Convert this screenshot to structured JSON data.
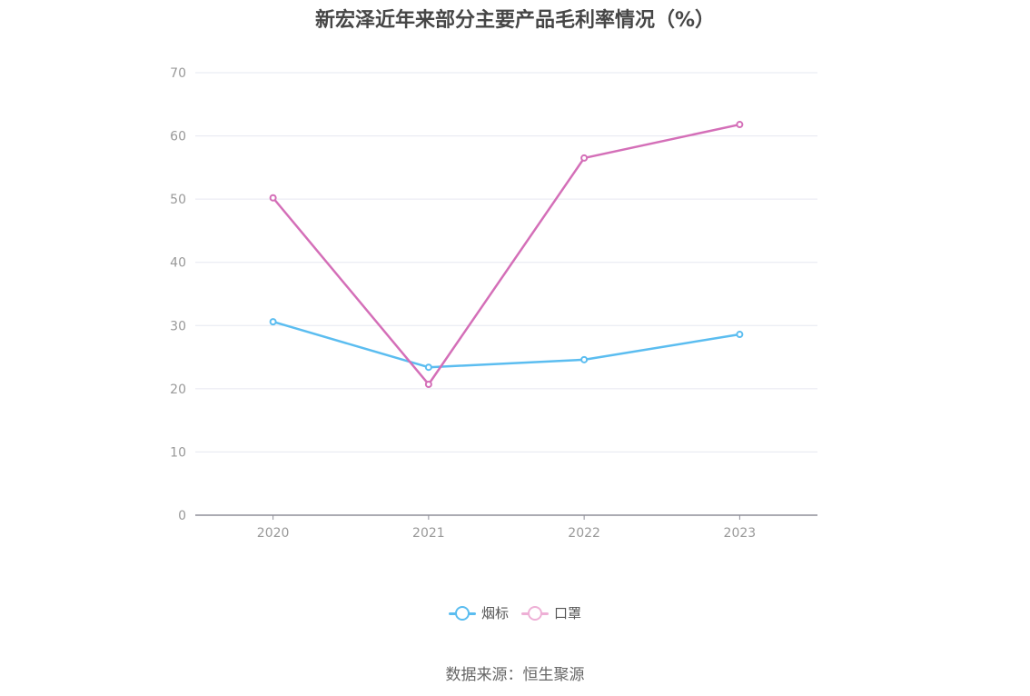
{
  "chart_data": {
    "type": "line",
    "title": "新宏泽近年来部分主要产品毛利率情况（%）",
    "categories": [
      "2020",
      "2021",
      "2022",
      "2023"
    ],
    "series": [
      {
        "name": "烟标",
        "values": [
          30.6,
          23.4,
          24.6,
          28.6
        ],
        "color": "#5bbdf0"
      },
      {
        "name": "口罩",
        "values": [
          50.2,
          20.7,
          56.5,
          61.8
        ],
        "color": "#d46fb8"
      }
    ],
    "ylim": [
      0,
      70
    ],
    "yticks": [
      0,
      10,
      20,
      30,
      40,
      50,
      60,
      70
    ],
    "grid": true,
    "legend_position": "bottom-center",
    "legend_pale_colors": [
      "#5bbdf0",
      "#eeb0d6"
    ],
    "source": "数据来源：恒生聚源"
  }
}
